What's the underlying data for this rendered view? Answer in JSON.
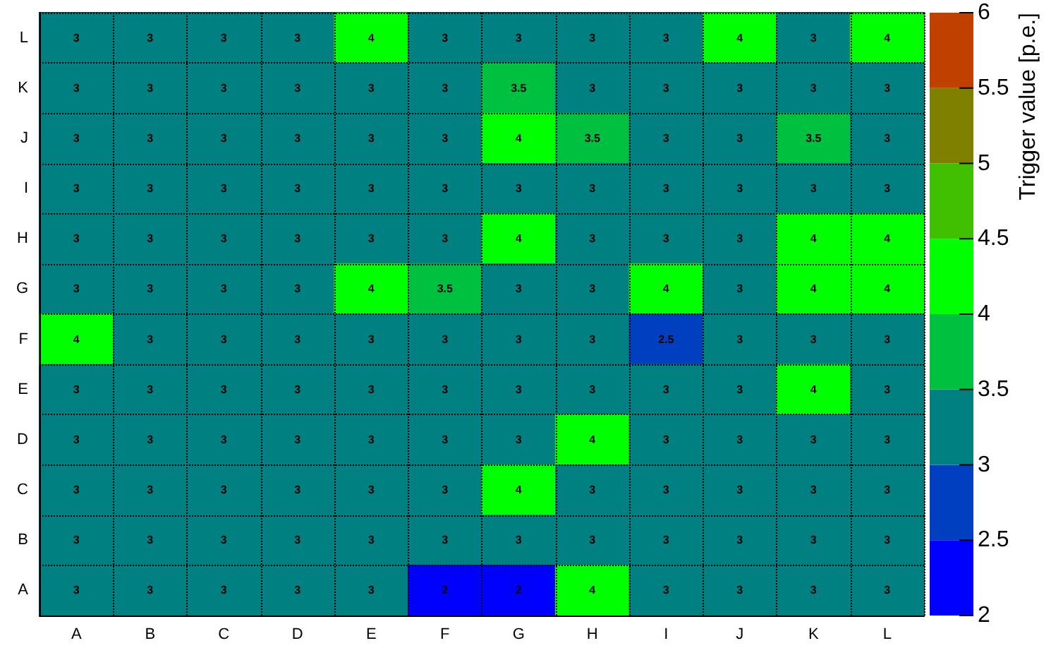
{
  "chart_data": {
    "type": "heatmap",
    "clabel": "Trigger value [p.e.]",
    "categories": [
      "A",
      "B",
      "C",
      "D",
      "E",
      "F",
      "G",
      "H",
      "I",
      "J",
      "K",
      "L"
    ],
    "y_categories": [
      "L",
      "K",
      "J",
      "I",
      "H",
      "G",
      "F",
      "E",
      "D",
      "C",
      "B",
      "A"
    ],
    "cells": [
      [
        3,
        3,
        3,
        3,
        4,
        3,
        3,
        3,
        3,
        4,
        3,
        4
      ],
      [
        3,
        3,
        3,
        3,
        3,
        3,
        3.5,
        3,
        3,
        3,
        3,
        3
      ],
      [
        3,
        3,
        3,
        3,
        3,
        3,
        4,
        3.5,
        3,
        3,
        3.5,
        3
      ],
      [
        3,
        3,
        3,
        3,
        3,
        3,
        3,
        3,
        3,
        3,
        3,
        3
      ],
      [
        3,
        3,
        3,
        3,
        3,
        3,
        4,
        3,
        3,
        3,
        4,
        4
      ],
      [
        3,
        3,
        3,
        3,
        4,
        3.5,
        3,
        3,
        4,
        3,
        4,
        4
      ],
      [
        4,
        3,
        3,
        3,
        3,
        3,
        3,
        3,
        2.5,
        3,
        3,
        3
      ],
      [
        3,
        3,
        3,
        3,
        3,
        3,
        3,
        3,
        3,
        3,
        4,
        3
      ],
      [
        3,
        3,
        3,
        3,
        3,
        3,
        3,
        4,
        3,
        3,
        3,
        3
      ],
      [
        3,
        3,
        3,
        3,
        3,
        3,
        4,
        3,
        3,
        3,
        3,
        3
      ],
      [
        3,
        3,
        3,
        3,
        3,
        3,
        3,
        3,
        3,
        3,
        3,
        3
      ],
      [
        3,
        3,
        3,
        3,
        3,
        2,
        2,
        4,
        3,
        3,
        3,
        3
      ]
    ],
    "clim": [
      2,
      6
    ],
    "cticks": [
      2,
      2.5,
      3,
      3.5,
      4,
      4.5,
      5,
      5.5,
      6
    ],
    "data_labels": true,
    "grid": true
  }
}
